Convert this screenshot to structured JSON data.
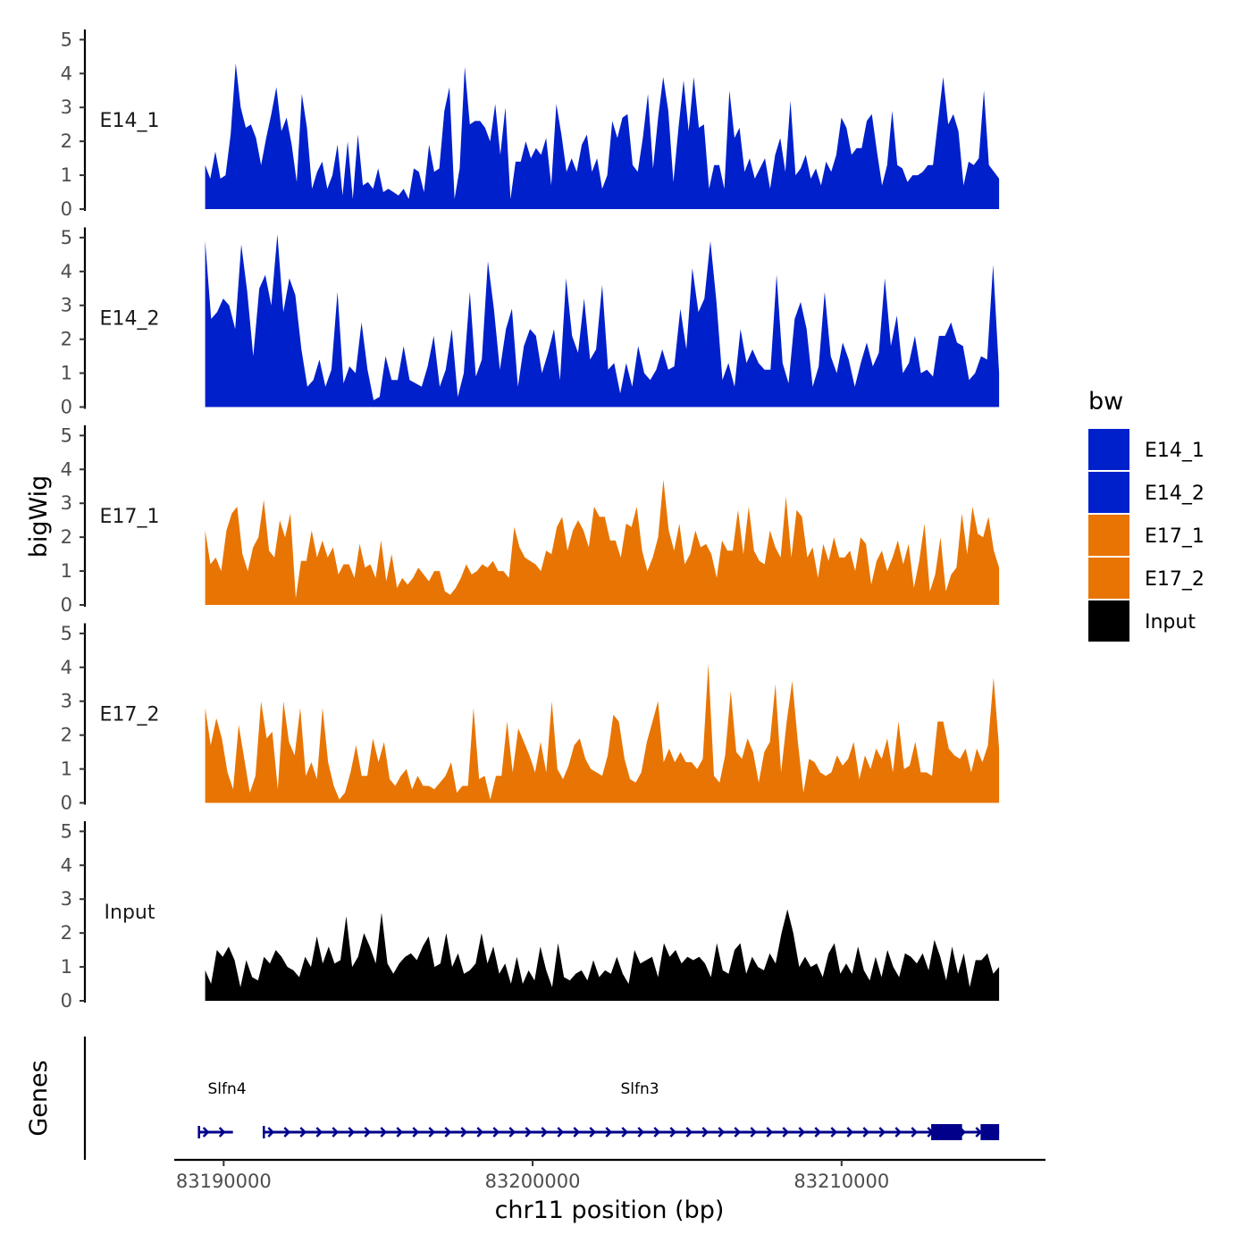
{
  "chart_data": {
    "type": "area",
    "title": "",
    "xlabel": "chr11 position (bp)",
    "ylabel": "bigWig",
    "genes_panel_label": "Genes",
    "xlim": [
      83188400,
      83216600
    ],
    "xticks": [
      83190000,
      83200000,
      83210000
    ],
    "xtick_labels": [
      "83190000",
      "83200000",
      "83210000"
    ],
    "ylim": [
      0,
      5.3
    ],
    "yticks": [
      0,
      1,
      2,
      3,
      4,
      5
    ],
    "ytick_labels": [
      "0",
      "1",
      "2",
      "3",
      "4",
      "5"
    ],
    "x_start": 83189400,
    "x_end": 83215100,
    "legend": {
      "title": "bw",
      "position": "right",
      "entries": [
        {
          "label": "E14_1",
          "color": "#0020cc"
        },
        {
          "label": "E14_2",
          "color": "#0020cc"
        },
        {
          "label": "E17_1",
          "color": "#e87503"
        },
        {
          "label": "E17_2",
          "color": "#e87503"
        },
        {
          "label": "Input",
          "color": "#000000"
        }
      ]
    },
    "series": [
      {
        "name": "E14_1",
        "color": "#0020cc",
        "values": [
          1.3,
          0.9,
          1.7,
          0.9,
          1.0,
          2.2,
          4.3,
          3.0,
          2.4,
          2.5,
          2.1,
          1.3,
          2.1,
          2.8,
          3.6,
          2.3,
          2.7,
          1.9,
          0.8,
          3.4,
          2.4,
          0.6,
          1.1,
          1.4,
          0.6,
          1.0,
          1.9,
          0.4,
          2.0,
          0.3,
          2.2,
          0.7,
          0.8,
          0.6,
          1.2,
          0.5,
          0.6,
          0.5,
          0.4,
          0.6,
          0.3,
          1.2,
          1.1,
          0.5,
          1.9,
          1.1,
          1.2,
          2.9,
          3.6,
          0.3,
          1.2,
          4.2,
          2.5,
          2.6,
          2.6,
          2.4,
          2.0,
          3.1,
          1.6,
          3.0,
          0.3,
          1.4,
          1.4,
          2.0,
          1.5,
          1.8,
          1.6,
          2.1,
          0.7,
          3.1,
          2.2,
          1.1,
          1.5,
          1.1,
          1.9,
          2.2,
          1.1,
          1.5,
          0.6,
          1.0,
          2.6,
          2.1,
          2.7,
          2.8,
          1.3,
          1.1,
          2.1,
          3.4,
          1.2,
          2.7,
          3.9,
          2.9,
          0.8,
          2.4,
          3.8,
          2.3,
          3.9,
          2.4,
          2.5,
          0.6,
          1.3,
          1.3,
          0.6,
          3.5,
          2.1,
          2.4,
          1.1,
          1.5,
          0.9,
          1.2,
          1.5,
          0.6,
          1.6,
          2.1,
          1.1,
          3.2,
          1.0,
          1.2,
          1.6,
          0.9,
          1.2,
          0.7,
          1.4,
          1.1,
          1.6,
          2.7,
          2.4,
          1.6,
          1.8,
          1.8,
          2.6,
          2.8,
          1.7,
          0.7,
          1.3,
          2.9,
          1.3,
          1.2,
          0.8,
          1.0,
          1.0,
          1.1,
          1.3,
          1.3,
          2.6,
          3.9,
          2.5,
          2.8,
          2.3,
          0.7,
          1.4,
          1.3,
          1.5,
          3.5,
          1.3,
          1.1,
          0.9
        ]
      },
      {
        "name": "E14_2",
        "color": "#0020cc",
        "values": [
          4.9,
          2.6,
          2.8,
          3.2,
          3.0,
          2.3,
          4.8,
          3.4,
          1.5,
          3.5,
          3.9,
          3.0,
          5.1,
          2.8,
          3.8,
          3.3,
          1.7,
          0.6,
          0.8,
          1.4,
          0.6,
          1.1,
          3.4,
          0.7,
          1.2,
          1.0,
          2.5,
          1.1,
          0.2,
          0.3,
          1.5,
          0.8,
          0.8,
          1.8,
          0.8,
          0.7,
          0.6,
          1.2,
          2.1,
          0.6,
          1.1,
          2.3,
          0.3,
          1.0,
          3.4,
          0.9,
          1.4,
          4.3,
          2.9,
          1.1,
          2.3,
          2.9,
          0.6,
          1.8,
          2.3,
          2.1,
          1.0,
          1.6,
          2.3,
          0.8,
          3.8,
          2.1,
          1.6,
          3.2,
          1.4,
          1.7,
          3.6,
          1.1,
          1.3,
          0.4,
          1.3,
          0.6,
          1.8,
          1.0,
          0.8,
          1.1,
          1.7,
          1.1,
          1.2,
          2.9,
          1.7,
          4.1,
          2.8,
          3.2,
          4.9,
          3.1,
          0.8,
          1.3,
          0.6,
          2.3,
          1.3,
          1.7,
          1.3,
          1.1,
          1.1,
          3.9,
          1.3,
          0.7,
          2.6,
          3.1,
          2.3,
          0.6,
          1.2,
          3.4,
          1.5,
          1.0,
          1.9,
          1.4,
          0.6,
          1.3,
          1.9,
          1.2,
          1.6,
          3.8,
          1.8,
          2.7,
          1.0,
          1.3,
          2.1,
          1.0,
          1.1,
          0.9,
          2.1,
          2.1,
          2.5,
          1.9,
          1.8,
          0.8,
          1.0,
          1.5,
          1.4,
          4.2,
          1.0
        ]
      },
      {
        "name": "E17_1",
        "color": "#e87503",
        "values": [
          2.2,
          1.2,
          1.4,
          1.0,
          2.2,
          2.7,
          2.9,
          1.5,
          1.0,
          1.7,
          2.0,
          3.1,
          1.6,
          1.4,
          2.5,
          2.0,
          2.7,
          0.2,
          1.3,
          1.3,
          2.2,
          1.4,
          1.9,
          1.4,
          1.7,
          0.9,
          1.2,
          1.2,
          0.8,
          1.8,
          1.1,
          1.2,
          0.8,
          1.9,
          0.7,
          1.5,
          0.5,
          0.8,
          0.6,
          0.8,
          1.1,
          0.9,
          0.7,
          1.0,
          1.0,
          0.4,
          0.3,
          0.5,
          0.8,
          1.2,
          0.9,
          1.0,
          1.2,
          1.1,
          1.3,
          1.0,
          1.0,
          0.8,
          2.3,
          1.7,
          1.4,
          1.3,
          1.2,
          1.0,
          1.6,
          1.5,
          2.3,
          2.6,
          1.6,
          2.2,
          2.5,
          2.2,
          1.7,
          2.9,
          2.6,
          2.6,
          1.9,
          1.9,
          1.4,
          2.4,
          2.3,
          2.9,
          1.6,
          1.0,
          1.4,
          2.0,
          3.7,
          2.2,
          1.6,
          2.4,
          1.2,
          1.5,
          2.2,
          1.7,
          1.8,
          1.5,
          0.8,
          1.9,
          1.6,
          1.6,
          2.8,
          1.5,
          2.9,
          1.6,
          1.3,
          1.2,
          2.2,
          1.7,
          1.4,
          3.2,
          1.4,
          2.8,
          2.6,
          1.4,
          1.7,
          0.8,
          1.8,
          1.3,
          2.0,
          1.4,
          1.4,
          1.6,
          1.0,
          2.0,
          1.8,
          0.6,
          1.3,
          1.6,
          1.0,
          1.4,
          1.9,
          1.2,
          1.8,
          0.5,
          1.3,
          2.4,
          0.4,
          0.9,
          2.0,
          0.4,
          0.9,
          1.1,
          2.7,
          1.5,
          2.9,
          2.1,
          2.0,
          2.6,
          1.6,
          1.1
        ]
      },
      {
        "name": "E17_2",
        "color": "#e87503",
        "values": [
          2.8,
          1.7,
          2.5,
          1.9,
          0.9,
          0.4,
          2.3,
          1.3,
          0.3,
          0.8,
          3.0,
          1.9,
          2.1,
          0.4,
          3.0,
          1.8,
          1.4,
          2.8,
          0.8,
          1.2,
          0.7,
          2.8,
          1.2,
          0.5,
          0.1,
          0.3,
          0.9,
          1.7,
          0.8,
          0.8,
          1.9,
          1.2,
          1.8,
          0.7,
          0.5,
          0.8,
          1.0,
          0.4,
          0.8,
          0.5,
          0.5,
          0.4,
          0.6,
          0.8,
          1.2,
          0.3,
          0.5,
          0.5,
          2.8,
          0.7,
          0.8,
          0.1,
          0.8,
          0.8,
          2.4,
          0.9,
          2.2,
          1.8,
          1.4,
          0.9,
          1.8,
          0.9,
          3.0,
          1.0,
          0.7,
          1.1,
          1.7,
          1.9,
          1.3,
          1.0,
          0.9,
          0.8,
          1.4,
          2.6,
          2.4,
          1.3,
          0.7,
          0.6,
          0.9,
          1.8,
          2.4,
          3.0,
          1.2,
          1.6,
          1.2,
          1.5,
          1.2,
          1.2,
          1.0,
          1.3,
          4.1,
          0.8,
          0.6,
          1.4,
          3.3,
          1.5,
          1.3,
          1.9,
          1.5,
          0.6,
          1.5,
          1.8,
          3.5,
          0.9,
          2.4,
          3.6,
          1.8,
          0.3,
          1.3,
          1.2,
          0.9,
          0.8,
          0.9,
          1.4,
          1.1,
          1.3,
          1.8,
          0.7,
          1.4,
          1.0,
          1.6,
          1.3,
          1.9,
          0.9,
          2.4,
          1.0,
          1.1,
          1.8,
          0.9,
          0.9,
          0.8,
          2.4,
          2.4,
          1.6,
          1.4,
          1.3,
          1.6,
          0.9,
          1.6,
          1.2,
          1.7,
          3.7,
          1.6
        ]
      },
      {
        "name": "Input",
        "color": "#000000",
        "values": [
          0.9,
          0.5,
          1.5,
          1.3,
          1.6,
          1.2,
          0.4,
          1.2,
          0.7,
          0.6,
          1.3,
          1.1,
          1.5,
          1.3,
          1.0,
          0.9,
          0.7,
          1.3,
          1.0,
          1.9,
          1.1,
          1.6,
          1.1,
          1.2,
          2.5,
          1.0,
          1.3,
          2.0,
          1.6,
          1.1,
          2.6,
          1.1,
          0.8,
          1.1,
          1.3,
          1.4,
          1.2,
          1.6,
          1.9,
          1.0,
          1.1,
          2.0,
          1.0,
          1.4,
          0.8,
          0.9,
          1.1,
          2.0,
          1.1,
          1.6,
          0.8,
          1.1,
          0.5,
          1.3,
          0.5,
          0.9,
          0.6,
          1.6,
          0.9,
          0.4,
          1.7,
          0.7,
          0.6,
          0.8,
          0.9,
          0.6,
          1.2,
          0.7,
          0.9,
          0.8,
          1.3,
          0.8,
          0.5,
          1.5,
          1.1,
          1.2,
          1.3,
          0.7,
          1.7,
          1.3,
          1.5,
          1.1,
          1.3,
          1.2,
          1.3,
          1.1,
          0.7,
          1.7,
          0.9,
          0.8,
          1.5,
          1.7,
          0.8,
          1.3,
          1.0,
          0.9,
          1.4,
          1.1,
          2.0,
          2.7,
          2.0,
          1.0,
          1.3,
          1.0,
          1.1,
          0.7,
          1.4,
          1.7,
          0.8,
          1.1,
          0.8,
          1.6,
          0.9,
          0.6,
          1.3,
          0.7,
          1.5,
          1.0,
          0.7,
          1.4,
          1.3,
          1.1,
          1.4,
          0.9,
          1.8,
          1.3,
          0.6,
          1.6,
          0.8,
          1.4,
          0.4,
          1.2,
          1.2,
          1.4,
          0.8,
          1.0
        ]
      }
    ],
    "genes": [
      {
        "name": "Slfn4",
        "strand": "+",
        "start": 83189200,
        "end": 83190300,
        "exons": []
      },
      {
        "name": "Slfn3",
        "strand": "+",
        "start": 83191300,
        "end": 83215100,
        "exons": [
          [
            83212900,
            83213900
          ],
          [
            83214500,
            83215100
          ]
        ]
      }
    ]
  }
}
